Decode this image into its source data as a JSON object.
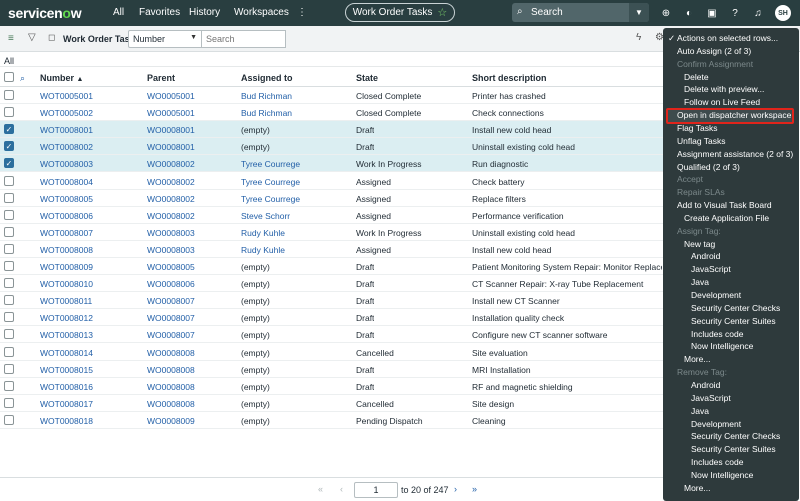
{
  "topbar": {
    "logo": "servicenow",
    "nav": [
      "All",
      "Favorites",
      "History",
      "Workspaces"
    ],
    "more": "⋮",
    "pill_title": "Work Order Tasks",
    "search_label": "Search",
    "avatar": "SH"
  },
  "listbar": {
    "title": "Work Order Tasks",
    "field_select": "Number",
    "search_placeholder": "Search"
  },
  "breadcrumb": "All",
  "table": {
    "headers": [
      "Number",
      "Parent",
      "Assigned to",
      "State",
      "Short description"
    ],
    "sort_indicator": "▲",
    "rows": [
      {
        "number": "WOT0005001",
        "parent": "WO0005001",
        "assigned": "Bud Richman",
        "state": "Closed Complete",
        "desc": "Printer has crashed",
        "checked": false
      },
      {
        "number": "WOT0005002",
        "parent": "WO0005001",
        "assigned": "Bud Richman",
        "state": "Closed Complete",
        "desc": "Check connections",
        "checked": false
      },
      {
        "number": "WOT0008001",
        "parent": "WO0008001",
        "assigned": "(empty)",
        "state": "Draft",
        "desc": "Install new cold head",
        "checked": true
      },
      {
        "number": "WOT0008002",
        "parent": "WO0008001",
        "assigned": "(empty)",
        "state": "Draft",
        "desc": "Uninstall existing cold head",
        "checked": true
      },
      {
        "number": "WOT0008003",
        "parent": "WO0008002",
        "assigned": "Tyree Courrege",
        "state": "Work In Progress",
        "desc": "Run diagnostic",
        "checked": true
      },
      {
        "number": "WOT0008004",
        "parent": "WO0008002",
        "assigned": "Tyree Courrege",
        "state": "Assigned",
        "desc": "Check battery",
        "checked": false
      },
      {
        "number": "WOT0008005",
        "parent": "WO0008002",
        "assigned": "Tyree Courrege",
        "state": "Assigned",
        "desc": "Replace filters",
        "checked": false
      },
      {
        "number": "WOT0008006",
        "parent": "WO0008002",
        "assigned": "Steve Schorr",
        "state": "Assigned",
        "desc": "Performance verification",
        "checked": false
      },
      {
        "number": "WOT0008007",
        "parent": "WO0008003",
        "assigned": "Rudy Kuhle",
        "state": "Work In Progress",
        "desc": "Uninstall existing cold head",
        "checked": false
      },
      {
        "number": "WOT0008008",
        "parent": "WO0008003",
        "assigned": "Rudy Kuhle",
        "state": "Assigned",
        "desc": "Install new cold head",
        "checked": false
      },
      {
        "number": "WOT0008009",
        "parent": "WO0008005",
        "assigned": "(empty)",
        "state": "Draft",
        "desc": "Patient Monitoring System Repair: Monitor Replacement",
        "checked": false
      },
      {
        "number": "WOT0008010",
        "parent": "WO0008006",
        "assigned": "(empty)",
        "state": "Draft",
        "desc": "CT Scanner Repair: X-ray Tube Replacement",
        "checked": false
      },
      {
        "number": "WOT0008011",
        "parent": "WO0008007",
        "assigned": "(empty)",
        "state": "Draft",
        "desc": "Install new CT Scanner",
        "checked": false
      },
      {
        "number": "WOT0008012",
        "parent": "WO0008007",
        "assigned": "(empty)",
        "state": "Draft",
        "desc": "Installation quality check",
        "checked": false
      },
      {
        "number": "WOT0008013",
        "parent": "WO0008007",
        "assigned": "(empty)",
        "state": "Draft",
        "desc": "Configure new CT scanner software",
        "checked": false
      },
      {
        "number": "WOT0008014",
        "parent": "WO0008008",
        "assigned": "(empty)",
        "state": "Cancelled",
        "desc": "Site evaluation",
        "checked": false
      },
      {
        "number": "WOT0008015",
        "parent": "WO0008008",
        "assigned": "(empty)",
        "state": "Draft",
        "desc": "MRI Installation",
        "checked": false
      },
      {
        "number": "WOT0008016",
        "parent": "WO0008008",
        "assigned": "(empty)",
        "state": "Draft",
        "desc": "RF and magnetic shielding",
        "checked": false
      },
      {
        "number": "WOT0008017",
        "parent": "WO0008008",
        "assigned": "(empty)",
        "state": "Cancelled",
        "desc": "Site design",
        "checked": false
      },
      {
        "number": "WOT0008018",
        "parent": "WO0008009",
        "assigned": "(empty)",
        "state": "Pending Dispatch",
        "desc": "Cleaning",
        "checked": false
      }
    ]
  },
  "pager": {
    "page_value": "1",
    "range_text": "to 20 of 247"
  },
  "context_menu": {
    "items": [
      {
        "label": "✓ Actions on selected rows...",
        "disabled": false,
        "indent": 0
      },
      {
        "label": "Auto Assign (2 of 3)",
        "disabled": false,
        "indent": 0
      },
      {
        "label": "Confirm Assignment",
        "disabled": true,
        "indent": 0
      },
      {
        "label": "Delete",
        "disabled": false,
        "indent": 1
      },
      {
        "label": "Delete with preview...",
        "disabled": false,
        "indent": 1
      },
      {
        "label": "Follow on Live Feed",
        "disabled": false,
        "indent": 1
      },
      {
        "label": "Open in dispatcher workspace",
        "disabled": false,
        "indent": 0,
        "highlighted": true
      },
      {
        "label": "Flag Tasks",
        "disabled": false,
        "indent": 0
      },
      {
        "label": "Unflag Tasks",
        "disabled": false,
        "indent": 0
      },
      {
        "label": "Assignment assistance (2 of 3)",
        "disabled": false,
        "indent": 0
      },
      {
        "label": "Qualified (2 of 3)",
        "disabled": false,
        "indent": 0
      },
      {
        "label": "Accept",
        "disabled": true,
        "indent": 0
      },
      {
        "label": "Repair SLAs",
        "disabled": true,
        "indent": 0
      },
      {
        "label": "Add to Visual Task Board",
        "disabled": false,
        "indent": 0
      },
      {
        "label": "Create Application File",
        "disabled": false,
        "indent": 1
      },
      {
        "label": "Assign Tag:",
        "disabled": true,
        "indent": 0
      },
      {
        "label": "New tag",
        "disabled": false,
        "indent": 1
      },
      {
        "label": "Android",
        "disabled": false,
        "indent": 2
      },
      {
        "label": "JavaScript",
        "disabled": false,
        "indent": 2
      },
      {
        "label": "Java",
        "disabled": false,
        "indent": 2
      },
      {
        "label": "Development",
        "disabled": false,
        "indent": 2
      },
      {
        "label": "Security Center Checks",
        "disabled": false,
        "indent": 2
      },
      {
        "label": "Security Center Suites",
        "disabled": false,
        "indent": 2
      },
      {
        "label": "Includes code",
        "disabled": false,
        "indent": 2
      },
      {
        "label": "Now Intelligence",
        "disabled": false,
        "indent": 2
      },
      {
        "label": "More...",
        "disabled": false,
        "indent": 1
      },
      {
        "label": "Remove Tag:",
        "disabled": true,
        "indent": 0
      },
      {
        "label": "Android",
        "disabled": false,
        "indent": 2
      },
      {
        "label": "JavaScript",
        "disabled": false,
        "indent": 2
      },
      {
        "label": "Java",
        "disabled": false,
        "indent": 2
      },
      {
        "label": "Development",
        "disabled": false,
        "indent": 2
      },
      {
        "label": "Security Center Checks",
        "disabled": false,
        "indent": 2
      },
      {
        "label": "Security Center Suites",
        "disabled": false,
        "indent": 2
      },
      {
        "label": "Includes code",
        "disabled": false,
        "indent": 2
      },
      {
        "label": "Now Intelligence",
        "disabled": false,
        "indent": 2
      },
      {
        "label": "More...",
        "disabled": false,
        "indent": 1
      }
    ]
  },
  "colors": {
    "topbar_bg": "#293e40",
    "menu_bg": "#2e3a3c",
    "link": "#2360a8",
    "selected_row": "#dbeef2",
    "highlight_border": "#e0241b"
  }
}
